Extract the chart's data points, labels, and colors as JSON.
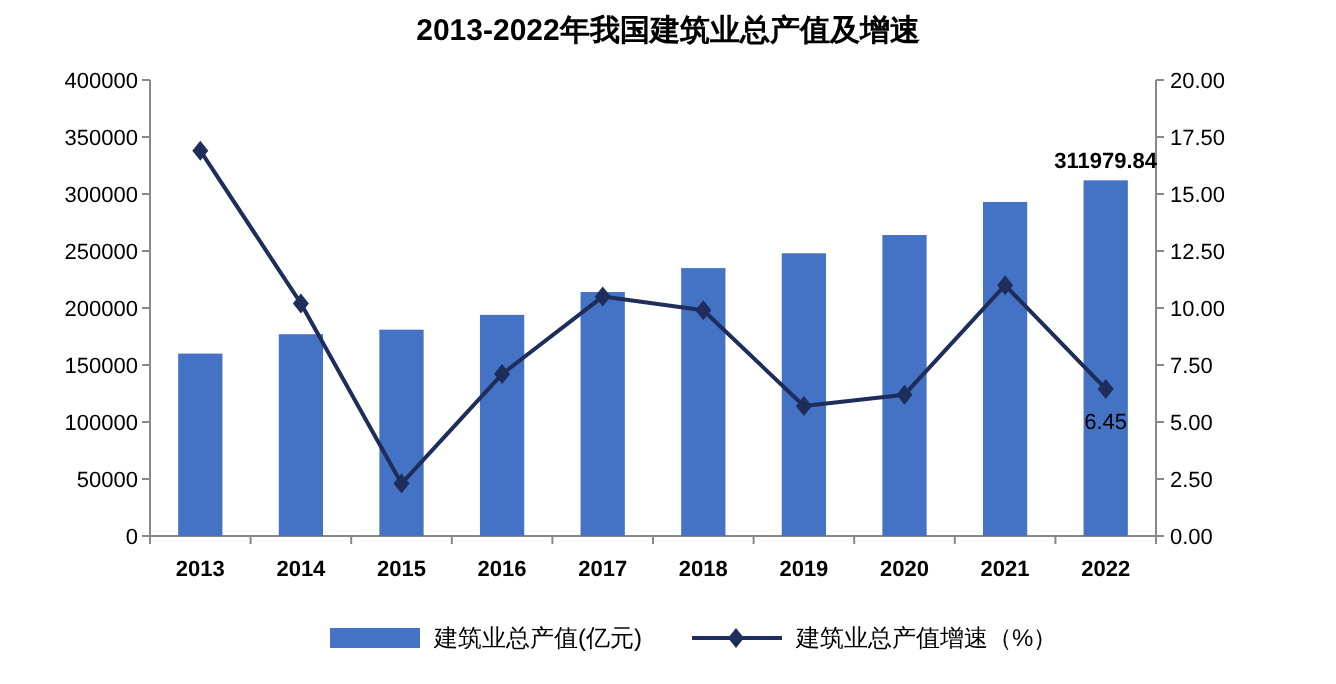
{
  "chart_data": {
    "type": "bar",
    "title": "2013-2022年我国建筑业总产值及增速",
    "categories": [
      "2013",
      "2014",
      "2015",
      "2016",
      "2017",
      "2018",
      "2019",
      "2020",
      "2021",
      "2022"
    ],
    "series": [
      {
        "name": "建筑业总产值(亿元)",
        "color": "#4472c4",
        "values": [
          160000,
          177000,
          181000,
          194000,
          214000,
          235000,
          248000,
          264000,
          293000,
          311979.84
        ],
        "value_labels": [
          null,
          null,
          null,
          null,
          null,
          null,
          null,
          null,
          null,
          "311979.84"
        ]
      },
      {
        "name": "建筑业总产值增速（%）",
        "type": "line",
        "axis": "y2",
        "color": "#1f2d5a",
        "marker": "diamond",
        "values": [
          16.9,
          10.2,
          2.3,
          7.1,
          10.5,
          9.9,
          5.7,
          6.2,
          11.0,
          6.45
        ],
        "value_labels": [
          null,
          null,
          null,
          null,
          null,
          null,
          null,
          null,
          null,
          "6.45"
        ]
      }
    ],
    "ylim": [
      0,
      400000
    ],
    "yticks": [
      0,
      50000,
      100000,
      150000,
      200000,
      250000,
      300000,
      350000,
      400000
    ],
    "y2lim": [
      0,
      20
    ],
    "y2ticks": [
      {
        "value": 0,
        "label": "0.00"
      },
      {
        "value": 2.5,
        "label": "2.50"
      },
      {
        "value": 5,
        "label": "5.00"
      },
      {
        "value": 7.5,
        "label": "7.50"
      },
      {
        "value": 10,
        "label": "10.00"
      },
      {
        "value": 12.5,
        "label": "12.50"
      },
      {
        "value": 15,
        "label": "15.00"
      },
      {
        "value": 17.5,
        "label": "17.50"
      },
      {
        "value": 20,
        "label": "20.00"
      }
    ],
    "grid": false,
    "legend": "bottom"
  }
}
